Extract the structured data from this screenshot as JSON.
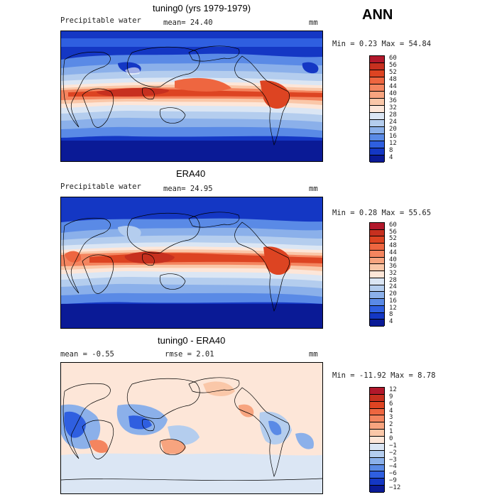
{
  "season": "ANN",
  "panels": [
    {
      "title": "tuning0 (yrs 1979-1979)",
      "left_label": "Precipitable water",
      "center_label": "mean=  24.40",
      "units": "mm",
      "minmax": "Min =   0.23 Max =  54.84",
      "levels": [
        "60",
        "56",
        "52",
        "48",
        "44",
        "40",
        "36",
        "32",
        "28",
        "24",
        "20",
        "16",
        "12",
        "8",
        "4"
      ],
      "colors": [
        "#b2182b",
        "#c7301f",
        "#dd4422",
        "#ee6640",
        "#f4855f",
        "#f7a47f",
        "#fac7a8",
        "#fde6d8",
        "#dbe6f4",
        "#b4cdee",
        "#8bb0ea",
        "#5a8ae6",
        "#2f5fe0",
        "#1437c4",
        "#0a1a96"
      ]
    },
    {
      "title": "ERA40",
      "left_label": "Precipitable water",
      "center_label": "mean=  24.95",
      "units": "mm",
      "minmax": "Min =   0.28 Max =  55.65",
      "levels": [
        "60",
        "56",
        "52",
        "48",
        "44",
        "40",
        "36",
        "32",
        "28",
        "24",
        "20",
        "16",
        "12",
        "8",
        "4"
      ],
      "colors": [
        "#b2182b",
        "#c7301f",
        "#dd4422",
        "#ee6640",
        "#f4855f",
        "#f7a47f",
        "#fac7a8",
        "#fde6d8",
        "#dbe6f4",
        "#b4cdee",
        "#8bb0ea",
        "#5a8ae6",
        "#2f5fe0",
        "#1437c4",
        "#0a1a96"
      ]
    },
    {
      "title": "tuning0 - ERA40",
      "left_label": "mean =  -0.55",
      "center_label": "rmse =   2.01",
      "units": "mm",
      "minmax": "Min = -11.92 Max =   8.78",
      "levels": [
        "12",
        "9",
        "6",
        "4",
        "3",
        "2",
        "1",
        "0",
        "−1",
        "−2",
        "−3",
        "−4",
        "−6",
        "−9",
        "−12"
      ],
      "colors": [
        "#b2182b",
        "#c7301f",
        "#dd4422",
        "#ee6640",
        "#f4855f",
        "#f7a47f",
        "#fac7a8",
        "#fde6d8",
        "#dbe6f4",
        "#b4cdee",
        "#8bb0ea",
        "#5a8ae6",
        "#2f5fe0",
        "#1437c4",
        "#0a1a96"
      ]
    }
  ]
}
